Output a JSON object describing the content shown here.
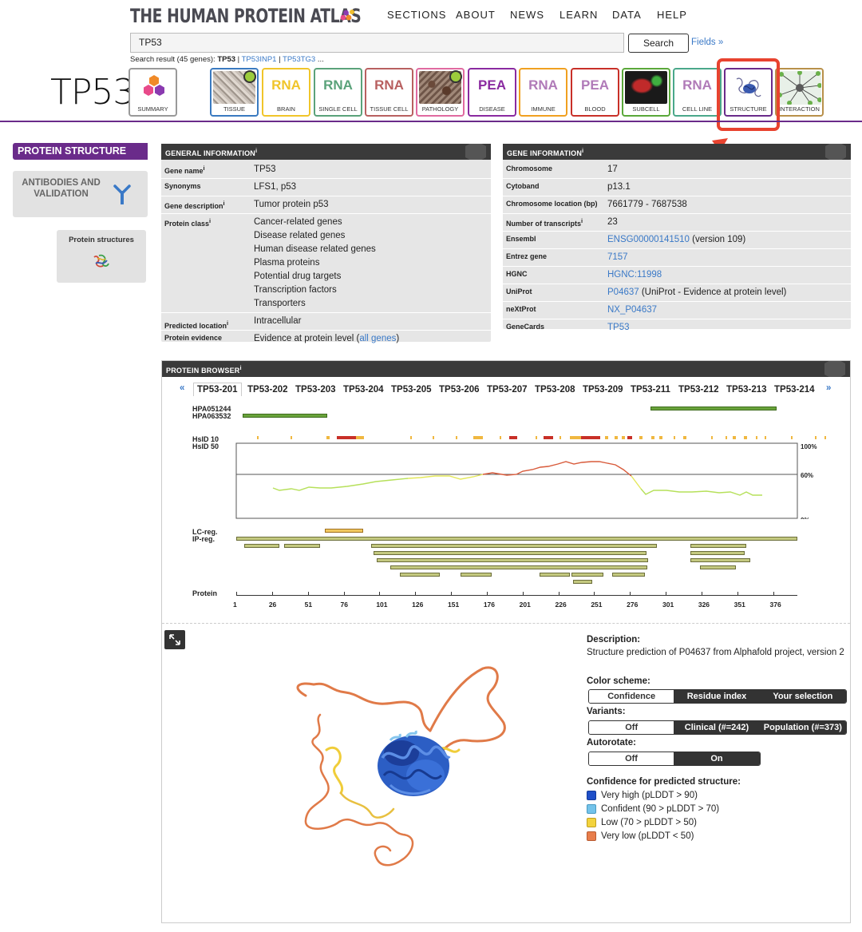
{
  "header": {
    "logo": "THE HUMAN PROTEIN ATLAS",
    "nav": [
      "SECTIONS",
      "ABOUT",
      "NEWS",
      "LEARN",
      "DATA",
      "HELP"
    ],
    "search_value": "TP53",
    "search_button": "Search",
    "fields_link": "Fields »",
    "search_result_prefix": "Search result (45 genes):",
    "search_result_current": "TP53",
    "search_result_links": [
      "TP53INP1",
      "TP53TG3"
    ],
    "search_result_more": "...",
    "gene": "TP53"
  },
  "tiles": [
    {
      "label": "SUMMARY",
      "big": "",
      "color": "#9a9a9a"
    },
    {
      "label": "TISSUE",
      "big": "",
      "color": "#3a7ac0"
    },
    {
      "label": "BRAIN",
      "big": "RNA",
      "color": "#f0c52a"
    },
    {
      "label": "SINGLE CELL",
      "big": "RNA",
      "color": "#5aa27a"
    },
    {
      "label": "TISSUE CELL",
      "big": "RNA",
      "color": "#b86060"
    },
    {
      "label": "PATHOLOGY",
      "big": "",
      "color": "#e06aa0"
    },
    {
      "label": "DISEASE",
      "big": "PEA",
      "color": "#8a2aa0"
    },
    {
      "label": "IMMUNE",
      "big": "RNA",
      "color": "#f0a020"
    },
    {
      "label": "BLOOD",
      "big": "PEA",
      "color": "#c83028"
    },
    {
      "label": "SUBCELL",
      "big": "",
      "color": "#5aa83a"
    },
    {
      "label": "CELL LINE",
      "big": "RNA",
      "color": "#4aa88a"
    },
    {
      "label": "STRUCTURE",
      "big": "",
      "color": "#6a2b8a"
    },
    {
      "label": "INTERACTION",
      "big": "",
      "color": "#b8904a"
    }
  ],
  "sidebar": {
    "protein_structure": "PROTEIN STRUCTURE",
    "antibodies": "ANTIBODIES AND VALIDATION",
    "protein_structures": "Protein structures"
  },
  "general_info": {
    "title": "GENERAL INFORMATION",
    "rows": [
      {
        "k": "Gene name",
        "v": "TP53"
      },
      {
        "k": "Synonyms",
        "v": "LFS1, p53"
      },
      {
        "k": "Gene description",
        "v": "Tumor protein p53"
      },
      {
        "k": "Protein class",
        "values": [
          "Cancer-related genes",
          "Disease related genes",
          "Human disease related genes",
          "Plasma proteins",
          "Potential drug targets",
          "Transcription factors",
          "Transporters"
        ]
      },
      {
        "k": "Predicted location",
        "v": "Intracellular"
      },
      {
        "k": "Protein evidence",
        "v": "Evidence at protein level (",
        "link": "all genes",
        "after": ")"
      }
    ]
  },
  "gene_info": {
    "title": "GENE INFORMATION",
    "rows": [
      {
        "k": "Chromosome",
        "v": "17"
      },
      {
        "k": "Cytoband",
        "v": "p13.1"
      },
      {
        "k": "Chromosome location (bp)",
        "v": "7661779 - 7687538"
      },
      {
        "k": "Number of transcripts",
        "v": "23"
      },
      {
        "k": "Ensembl",
        "link": "ENSG00000141510",
        "after": " (version 109)"
      },
      {
        "k": "Entrez gene",
        "link": "7157"
      },
      {
        "k": "HGNC",
        "link": "HGNC:11998"
      },
      {
        "k": "UniProt",
        "link": "P04637",
        "after": " (UniProt - Evidence at protein level)"
      },
      {
        "k": "neXtProt",
        "link": "NX_P04637"
      },
      {
        "k": "GeneCards",
        "link": "TP53"
      }
    ]
  },
  "protein_browser": {
    "title": "PROTEIN BROWSER",
    "prev": "«",
    "next": "»",
    "tabs": [
      "TP53-201",
      "TP53-202",
      "TP53-203",
      "TP53-204",
      "TP53-205",
      "TP53-206",
      "TP53-207",
      "TP53-208",
      "TP53-209",
      "TP53-211",
      "TP53-212",
      "TP53-213",
      "TP53-214"
    ],
    "selected_tab": "TP53-201",
    "track_labels": {
      "ab1": "HPA051244",
      "ab2": "HPA063532",
      "hsid10": "HsID 10",
      "hsid50": "HsID 50",
      "lc": "LC-reg.",
      "ip": "IP-reg.",
      "protein": "Protein"
    },
    "percent_labels": [
      "100%",
      "60%",
      "0%"
    ],
    "residue_ticks": [
      "1",
      "26",
      "51",
      "76",
      "101",
      "126",
      "151",
      "176",
      "201",
      "226",
      "251",
      "276",
      "301",
      "326",
      "351",
      "376"
    ],
    "residue_max": 393
  },
  "viewer": {
    "description_label": "Description:",
    "description": "Structure prediction of P04637 from Alphafold project, version 2",
    "color_scheme_label": "Color scheme:",
    "color_scheme_options": [
      "Confidence",
      "Residue index",
      "Your selection"
    ],
    "variants_label": "Variants:",
    "variants_options": [
      "Off",
      "Clinical (#=242)",
      "Population (#=373)"
    ],
    "autorotate_label": "Autorotate:",
    "autorotate_options": [
      "Off",
      "On"
    ],
    "confidence_label": "Confidence for predicted structure:",
    "legend": [
      {
        "label": "Very high (pLDDT > 90)",
        "color": "#1f4fc8"
      },
      {
        "label": "Confident (90 > pLDDT > 70)",
        "color": "#74c3ea"
      },
      {
        "label": "Low (70 > pLDDT > 50)",
        "color": "#f3d33d"
      },
      {
        "label": "Very low (pLDDT < 50)",
        "color": "#e87d4b"
      }
    ]
  }
}
